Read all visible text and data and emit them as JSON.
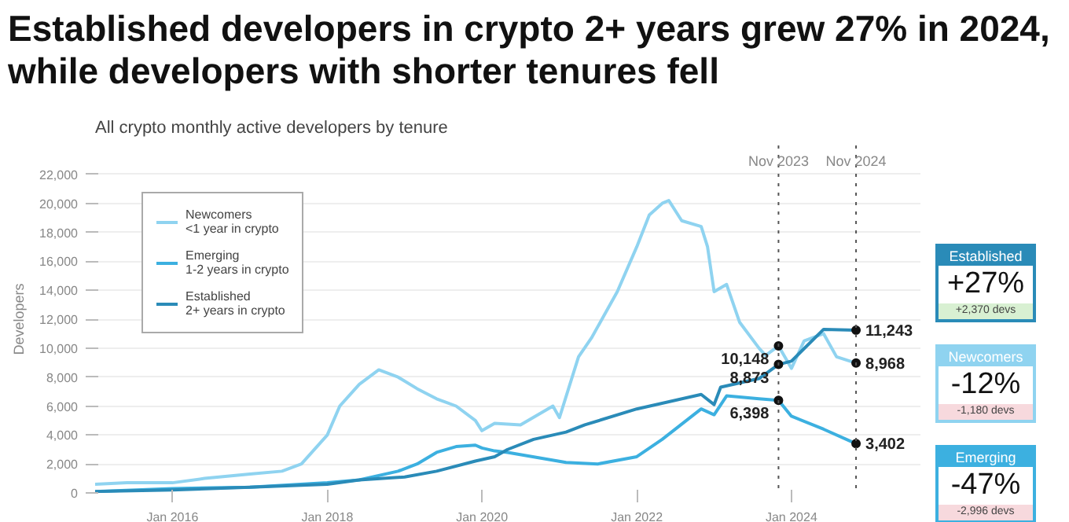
{
  "chart_data": {
    "type": "line",
    "title": "Established developers in crypto 2+ years grew 27% in 2024, while developers with shorter tenures fell",
    "subtitle": "All crypto monthly active developers by tenure",
    "ylabel": "Developers",
    "series": [
      {
        "name": "Newcomers\n<1 year in crypto",
        "color": "#8fd3f0",
        "x": [
          "2015-01",
          "2015-06",
          "2016-01",
          "2016-06",
          "2017-01",
          "2017-06",
          "2017-09",
          "2018-01",
          "2018-03",
          "2018-06",
          "2018-09",
          "2018-12",
          "2019-03",
          "2019-06",
          "2019-09",
          "2019-12",
          "2020-01",
          "2020-03",
          "2020-07",
          "2020-12",
          "2021-01",
          "2021-04",
          "2021-06",
          "2021-10",
          "2022-01",
          "2022-03",
          "2022-05",
          "2022-06",
          "2022-08",
          "2022-11",
          "2022-12",
          "2023-01",
          "2023-03",
          "2023-05",
          "2023-08",
          "2023-09",
          "2023-11",
          "2024-01",
          "2024-03",
          "2024-06",
          "2024-08",
          "2024-11"
        ],
        "values": [
          600,
          700,
          700,
          1000,
          1300,
          1500,
          2000,
          4000,
          6000,
          7500,
          8500,
          8000,
          7200,
          6500,
          6000,
          5000,
          4300,
          4800,
          4700,
          6000,
          5200,
          9400,
          10700,
          13900,
          17000,
          19200,
          20000,
          20200,
          18800,
          18400,
          17000,
          13900,
          14400,
          11800,
          10000,
          9500,
          10148,
          8600,
          10500,
          11000,
          9400,
          8968
        ]
      },
      {
        "name": "Emerging\n1-2 years in crypto",
        "color": "#3cb0e0",
        "x": [
          "2015-01",
          "2016-01",
          "2017-01",
          "2018-01",
          "2018-06",
          "2018-12",
          "2019-03",
          "2019-06",
          "2019-09",
          "2019-12",
          "2020-01",
          "2020-03",
          "2020-05",
          "2021-02",
          "2021-07",
          "2022-01",
          "2022-05",
          "2022-11",
          "2023-01",
          "2023-03",
          "2023-08",
          "2023-11",
          "2024-01",
          "2024-06",
          "2024-11"
        ],
        "values": [
          100,
          300,
          400,
          700,
          900,
          1500,
          2000,
          2800,
          3200,
          3300,
          3100,
          2900,
          2800,
          2100,
          2000,
          2500,
          3700,
          5800,
          5400,
          6700,
          6500,
          6398,
          5300,
          4400,
          3402
        ]
      },
      {
        "name": "Established\n2+ years in crypto",
        "color": "#2a8bb8",
        "x": [
          "2015-01",
          "2016-01",
          "2017-01",
          "2018-01",
          "2018-06",
          "2019-01",
          "2019-06",
          "2019-12",
          "2020-03",
          "2020-05",
          "2020-09",
          "2021-02",
          "2021-05",
          "2022-01",
          "2022-11",
          "2023-01",
          "2023-02",
          "2023-08",
          "2023-11",
          "2024-01",
          "2024-06",
          "2024-11"
        ],
        "values": [
          100,
          200,
          400,
          600,
          900,
          1100,
          1500,
          2200,
          2500,
          3000,
          3700,
          4200,
          4700,
          5800,
          6800,
          6100,
          7300,
          7900,
          8873,
          9100,
          11300,
          11243
        ]
      }
    ],
    "xlim": [
      "2015-01-01",
      "2025-09-01"
    ],
    "xticks": [
      {
        "value": "2016-01-01",
        "label": "Jan 2016"
      },
      {
        "value": "2018-01-01",
        "label": "Jan 2018"
      },
      {
        "value": "2020-01-01",
        "label": "Jan 2020"
      },
      {
        "value": "2022-01-01",
        "label": "Jan 2022"
      },
      {
        "value": "2024-01-01",
        "label": "Jan 2024"
      }
    ],
    "ylim": [
      0,
      24000
    ],
    "yticks": [
      {
        "value": 0,
        "label": "0"
      },
      {
        "value": 2000,
        "label": "2,000"
      },
      {
        "value": 4000,
        "label": "4,000"
      },
      {
        "value": 6000,
        "label": "6,000"
      },
      {
        "value": 8000,
        "label": "8,000"
      },
      {
        "value": 10000,
        "label": "10,000"
      },
      {
        "value": 12000,
        "label": "12,000"
      },
      {
        "value": 14000,
        "label": "14,000"
      },
      {
        "value": 16000,
        "label": "16,000"
      },
      {
        "value": 18000,
        "label": "18,000"
      },
      {
        "value": 20000,
        "label": "20,000"
      },
      {
        "value": 22000,
        "label": "22,000"
      }
    ],
    "grid": "y",
    "legend": "top left",
    "marker": "none",
    "line_style": "solid",
    "ref_lines": [
      {
        "axis": "x",
        "value": "2023-11",
        "label": "Nov 2023",
        "color": "#555555",
        "line_style": "dotted"
      },
      {
        "axis": "x",
        "value": "2024-11",
        "label": "Nov 2024",
        "color": "#555555",
        "line_style": "dotted"
      }
    ],
    "annotations": [
      {
        "text": "10,148",
        "x": "2023-11",
        "y": 10148
      },
      {
        "text": "8,873",
        "x": "2023-11",
        "y": 8873
      },
      {
        "text": "6,398",
        "x": "2023-11",
        "y": 6398
      },
      {
        "text": "11,243",
        "x": "2024-11",
        "y": 11243
      },
      {
        "text": "8,968",
        "x": "2024-11",
        "y": 8968
      },
      {
        "text": "3,402",
        "x": "2024-11",
        "y": 3402
      },
      "Established",
      "+27%",
      "+2,370 devs",
      "Newcomers",
      "-12%",
      "-1,180 devs",
      "Emerging",
      "-47%",
      "-2,996 devs"
    ]
  }
}
